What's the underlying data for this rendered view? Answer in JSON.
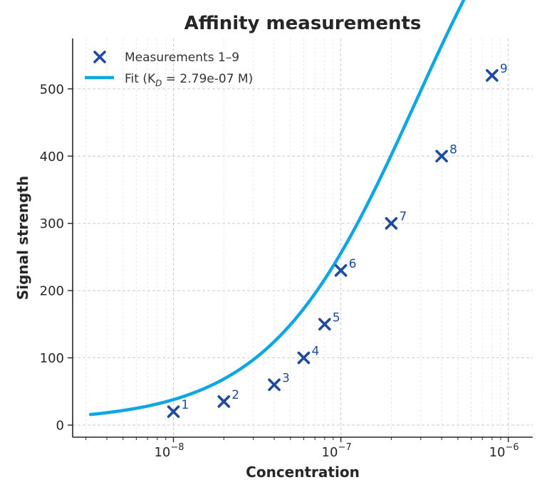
{
  "chart_data": {
    "type": "scatter",
    "title": "Affinity measurements",
    "xlabel": "Concentration",
    "ylabel": "Signal strength",
    "xscale": "log",
    "xlim": [
      2.5e-09,
      1.4e-06
    ],
    "ylim": [
      -18,
      575
    ],
    "xticks": [
      {
        "value": 1e-08,
        "base": "10",
        "exp": "−8"
      },
      {
        "value": 1e-07,
        "base": "10",
        "exp": "−7"
      },
      {
        "value": 1e-06,
        "base": "10",
        "exp": "−6"
      }
    ],
    "yticks": [
      {
        "value": 0,
        "label": "0"
      },
      {
        "value": 100,
        "label": "100"
      },
      {
        "value": 200,
        "label": "200"
      },
      {
        "value": 300,
        "label": "300"
      },
      {
        "value": 400,
        "label": "400"
      },
      {
        "value": 500,
        "label": "500"
      }
    ],
    "grid": true,
    "legend_position": "top-left",
    "legend": {
      "points_label": "Measurements 1–9",
      "fit_label_prefix": "Fit (K",
      "fit_label_sub": "D",
      "fit_label_suffix": " = 2.79e-07 M)"
    },
    "series": [
      {
        "name": "Measurements 1–9",
        "kind": "scatter",
        "marker": "x",
        "color": "#1f4aa0",
        "points": [
          {
            "label": "1",
            "x": 1e-08,
            "y": 20
          },
          {
            "label": "2",
            "x": 2e-08,
            "y": 35
          },
          {
            "label": "3",
            "x": 4e-08,
            "y": 60
          },
          {
            "label": "4",
            "x": 6e-08,
            "y": 100
          },
          {
            "label": "5",
            "x": 8e-08,
            "y": 150
          },
          {
            "label": "6",
            "x": 1e-07,
            "y": 230
          },
          {
            "label": "7",
            "x": 2e-07,
            "y": 300
          },
          {
            "label": "8",
            "x": 4e-07,
            "y": 400
          },
          {
            "label": "9",
            "x": 8e-07,
            "y": 520
          }
        ]
      },
      {
        "name": "Fit (K_D = 2.79e-07 M)",
        "kind": "line",
        "color": "#0fa6e6",
        "model": "hill",
        "params": {
          "bmax": 950,
          "kd": 2.79e-07,
          "n": 1.0,
          "baseline": 5
        },
        "x_range": [
          3.2e-09,
          1e-06
        ]
      }
    ]
  }
}
